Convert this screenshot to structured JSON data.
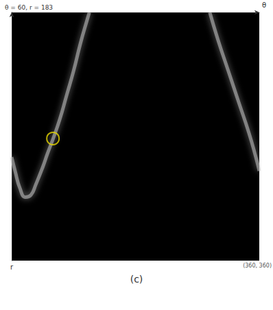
{
  "chart_data": {
    "type": "line",
    "title": "θ = 60, r = 183",
    "caption": "(c)",
    "corner_label": "(360, 360)",
    "x_label": "θ",
    "y_label": "r",
    "xlim": [
      0,
      360
    ],
    "ylim": [
      0,
      360
    ],
    "tick_labels": false,
    "grid": false,
    "series": [
      {
        "color": "#c8c8c8",
        "x": [
          0,
          5,
          12,
          20,
          28,
          35,
          45,
          52,
          60,
          70,
          80,
          90,
          100,
          110,
          113
        ],
        "values": [
          210,
          230,
          255,
          268,
          265,
          250,
          225,
          205,
          184,
          155,
          120,
          85,
          45,
          10,
          0
        ]
      },
      {
        "color": "#c8c8c8",
        "x": [
          288,
          300,
          315,
          330,
          345,
          355,
          360
        ],
        "values": [
          0,
          40,
          85,
          130,
          175,
          210,
          230
        ]
      }
    ],
    "highlight": {
      "x": 60,
      "y": 183,
      "color": "#e8d800",
      "marker": "circle"
    }
  }
}
